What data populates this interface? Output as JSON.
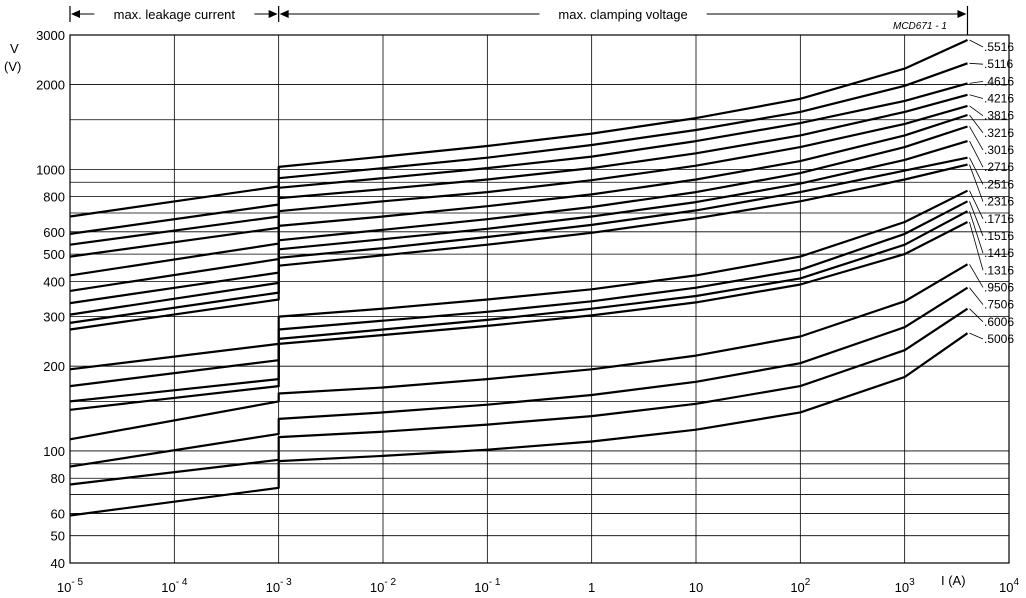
{
  "chart_data": {
    "type": "line",
    "title": "",
    "figure_code": "MCD671 - 1",
    "ylabel": "V",
    "ylabel_unit": "(V)",
    "xlabel": "I  (A)",
    "x_scale": "log",
    "y_scale": "log",
    "xlim": [
      1e-05,
      10000
    ],
    "ylim": [
      40,
      3000
    ],
    "grid": true,
    "x_ticks": [
      {
        "value": 1e-05,
        "base": "10",
        "exp": "- 5"
      },
      {
        "value": 0.0001,
        "base": "10",
        "exp": "- 4"
      },
      {
        "value": 0.001,
        "base": "10",
        "exp": "- 3"
      },
      {
        "value": 0.01,
        "base": "10",
        "exp": "- 2"
      },
      {
        "value": 0.1,
        "base": "10",
        "exp": "- 1"
      },
      {
        "value": 1,
        "base": "1",
        "exp": ""
      },
      {
        "value": 10,
        "base": "10",
        "exp": ""
      },
      {
        "value": 100,
        "base": "10",
        "exp": "2"
      },
      {
        "value": 1000,
        "base": "10",
        "exp": "3"
      },
      {
        "value": 10000,
        "base": "10",
        "exp": "4"
      }
    ],
    "y_ticks": [
      40,
      50,
      60,
      80,
      100,
      200,
      300,
      400,
      500,
      600,
      800,
      1000,
      2000,
      3000
    ],
    "y_gridlines": [
      40,
      50,
      60,
      70,
      80,
      90,
      100,
      150,
      200,
      300,
      400,
      500,
      600,
      700,
      800,
      900,
      1000,
      1500,
      2000,
      3000
    ],
    "regions": [
      {
        "label": "max. leakage current",
        "from": 1e-05,
        "to": 0.001
      },
      {
        "label": "max. clamping voltage",
        "from": 0.001,
        "to": 4000
      }
    ],
    "series": [
      {
        "name": ".5516",
        "leakage": [
          [
            1e-05,
            680
          ],
          [
            0.001,
            870
          ]
        ],
        "clamping": [
          [
            0.001,
            1020
          ],
          [
            0.01,
            1110
          ],
          [
            0.1,
            1210
          ],
          [
            1,
            1340
          ],
          [
            10,
            1520
          ],
          [
            100,
            1780
          ],
          [
            1000,
            2280
          ],
          [
            4000,
            2880
          ]
        ]
      },
      {
        "name": ".5116",
        "leakage": [
          [
            1e-05,
            590
          ],
          [
            0.001,
            750
          ]
        ],
        "clamping": [
          [
            0.001,
            930
          ],
          [
            0.01,
            1010
          ],
          [
            0.1,
            1100
          ],
          [
            1,
            1220
          ],
          [
            10,
            1380
          ],
          [
            100,
            1600
          ],
          [
            1000,
            1980
          ],
          [
            4000,
            2380
          ]
        ]
      },
      {
        "name": ".4616",
        "leakage": [
          [
            1e-05,
            540
          ],
          [
            0.001,
            680
          ]
        ],
        "clamping": [
          [
            0.001,
            860
          ],
          [
            0.01,
            930
          ],
          [
            0.1,
            1010
          ],
          [
            1,
            1110
          ],
          [
            10,
            1260
          ],
          [
            100,
            1460
          ],
          [
            1000,
            1750
          ],
          [
            4000,
            2020
          ]
        ]
      },
      {
        "name": ".4216",
        "leakage": [
          [
            1e-05,
            490
          ],
          [
            0.001,
            620
          ]
        ],
        "clamping": [
          [
            0.001,
            790
          ],
          [
            0.01,
            850
          ],
          [
            0.1,
            920
          ],
          [
            1,
            1010
          ],
          [
            10,
            1140
          ],
          [
            100,
            1320
          ],
          [
            1000,
            1600
          ],
          [
            4000,
            1840
          ]
        ]
      },
      {
        "name": ".3816",
        "leakage": [
          [
            1e-05,
            420
          ],
          [
            0.001,
            545
          ]
        ],
        "clamping": [
          [
            0.001,
            710
          ],
          [
            0.01,
            770
          ],
          [
            0.1,
            830
          ],
          [
            1,
            915
          ],
          [
            10,
            1030
          ],
          [
            100,
            1200
          ],
          [
            1000,
            1450
          ],
          [
            4000,
            1680
          ]
        ]
      },
      {
        "name": ".3216",
        "leakage": [
          [
            1e-05,
            370
          ],
          [
            0.001,
            480
          ]
        ],
        "clamping": [
          [
            0.001,
            630
          ],
          [
            0.01,
            680
          ],
          [
            0.1,
            740
          ],
          [
            1,
            815
          ],
          [
            10,
            920
          ],
          [
            100,
            1070
          ],
          [
            1000,
            1320
          ],
          [
            4000,
            1560
          ]
        ]
      },
      {
        "name": ".3016",
        "leakage": [
          [
            1e-05,
            335
          ],
          [
            0.001,
            430
          ]
        ],
        "clamping": [
          [
            0.001,
            560
          ],
          [
            0.01,
            610
          ],
          [
            0.1,
            665
          ],
          [
            1,
            735
          ],
          [
            10,
            830
          ],
          [
            100,
            970
          ],
          [
            1000,
            1200
          ],
          [
            4000,
            1420
          ]
        ]
      },
      {
        "name": ".2716",
        "leakage": [
          [
            1e-05,
            305
          ],
          [
            0.001,
            395
          ]
        ],
        "clamping": [
          [
            0.001,
            520
          ],
          [
            0.01,
            565
          ],
          [
            0.1,
            615
          ],
          [
            1,
            680
          ],
          [
            10,
            765
          ],
          [
            100,
            890
          ],
          [
            1000,
            1080
          ],
          [
            4000,
            1260
          ]
        ]
      },
      {
        "name": ".2516",
        "leakage": [
          [
            1e-05,
            285
          ],
          [
            0.001,
            365
          ]
        ],
        "clamping": [
          [
            0.001,
            485
          ],
          [
            0.01,
            525
          ],
          [
            0.1,
            575
          ],
          [
            1,
            635
          ],
          [
            10,
            715
          ],
          [
            100,
            830
          ],
          [
            1000,
            990
          ],
          [
            4000,
            1100
          ]
        ]
      },
      {
        "name": ".2316",
        "leakage": [
          [
            1e-05,
            270
          ],
          [
            0.001,
            345
          ]
        ],
        "clamping": [
          [
            0.001,
            455
          ],
          [
            0.01,
            495
          ],
          [
            0.1,
            540
          ],
          [
            1,
            595
          ],
          [
            10,
            670
          ],
          [
            100,
            770
          ],
          [
            1000,
            920
          ],
          [
            4000,
            1040
          ]
        ]
      },
      {
        "name": ".1716",
        "leakage": [
          [
            1e-05,
            195
          ],
          [
            0.001,
            240
          ]
        ],
        "clamping": [
          [
            0.001,
            300
          ],
          [
            0.01,
            320
          ],
          [
            0.1,
            345
          ],
          [
            1,
            375
          ],
          [
            10,
            420
          ],
          [
            100,
            490
          ],
          [
            1000,
            650
          ],
          [
            4000,
            840
          ]
        ]
      },
      {
        "name": ".1516",
        "leakage": [
          [
            1e-05,
            170
          ],
          [
            0.001,
            210
          ]
        ],
        "clamping": [
          [
            0.001,
            270
          ],
          [
            0.01,
            290
          ],
          [
            0.1,
            312
          ],
          [
            1,
            340
          ],
          [
            10,
            380
          ],
          [
            100,
            440
          ],
          [
            1000,
            590
          ],
          [
            4000,
            770
          ]
        ]
      },
      {
        "name": ".1416",
        "leakage": [
          [
            1e-05,
            150
          ],
          [
            0.001,
            180
          ]
        ],
        "clamping": [
          [
            0.001,
            250
          ],
          [
            0.01,
            270
          ],
          [
            0.1,
            292
          ],
          [
            1,
            320
          ],
          [
            10,
            355
          ],
          [
            100,
            410
          ],
          [
            1000,
            540
          ],
          [
            4000,
            710
          ]
        ]
      },
      {
        "name": ".1316",
        "leakage": [
          [
            1e-05,
            140
          ],
          [
            0.001,
            170
          ]
        ],
        "clamping": [
          [
            0.001,
            240
          ],
          [
            0.01,
            258
          ],
          [
            0.1,
            278
          ],
          [
            1,
            303
          ],
          [
            10,
            337
          ],
          [
            100,
            390
          ],
          [
            1000,
            500
          ],
          [
            4000,
            650
          ]
        ]
      },
      {
        "name": ".9506",
        "leakage": [
          [
            1e-05,
            110
          ],
          [
            0.001,
            150
          ]
        ],
        "clamping": [
          [
            0.001,
            160
          ],
          [
            0.01,
            168
          ],
          [
            0.1,
            180
          ],
          [
            1,
            195
          ],
          [
            10,
            218
          ],
          [
            100,
            255
          ],
          [
            1000,
            340
          ],
          [
            4000,
            460
          ]
        ]
      },
      {
        "name": ".7506",
        "leakage": [
          [
            1e-05,
            88
          ],
          [
            0.001,
            115
          ]
        ],
        "clamping": [
          [
            0.001,
            130
          ],
          [
            0.01,
            137
          ],
          [
            0.1,
            146
          ],
          [
            1,
            158
          ],
          [
            10,
            176
          ],
          [
            100,
            205
          ],
          [
            1000,
            275
          ],
          [
            4000,
            380
          ]
        ]
      },
      {
        "name": ".6006",
        "leakage": [
          [
            1e-05,
            76
          ],
          [
            0.001,
            93
          ]
        ],
        "clamping": [
          [
            0.001,
            112
          ],
          [
            0.01,
            117
          ],
          [
            0.1,
            124
          ],
          [
            1,
            133
          ],
          [
            10,
            147
          ],
          [
            100,
            170
          ],
          [
            1000,
            228
          ],
          [
            4000,
            320
          ]
        ]
      },
      {
        "name": ".5006",
        "leakage": [
          [
            1e-05,
            59
          ],
          [
            0.001,
            74
          ]
        ],
        "clamping": [
          [
            0.001,
            92
          ],
          [
            0.01,
            96
          ],
          [
            0.1,
            101
          ],
          [
            1,
            108
          ],
          [
            10,
            119
          ],
          [
            100,
            137
          ],
          [
            1000,
            183
          ],
          [
            4000,
            262
          ]
        ]
      }
    ]
  }
}
